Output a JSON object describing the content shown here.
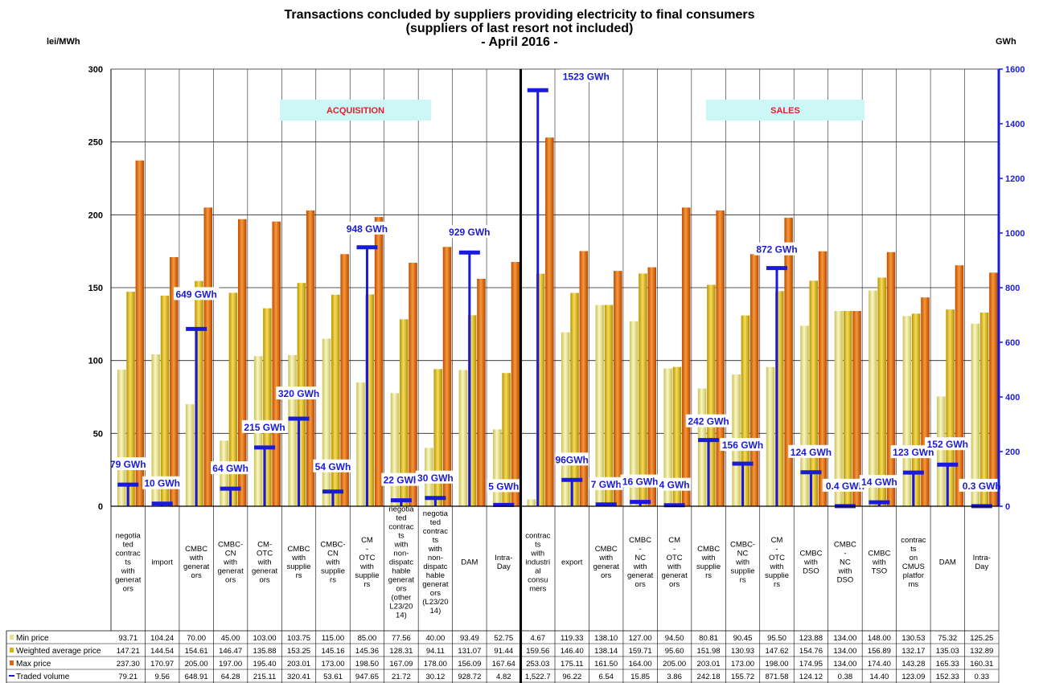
{
  "chart_data": {
    "type": "bar",
    "title": "Transactions concluded by suppliers providing electricity to final consumers",
    "subtitle": "(suppliers of last resort not included)",
    "period": "- April 2016 -",
    "y_left_label": "lei/MWh",
    "y_right_label": "GWh",
    "ylim_left": [
      0,
      300
    ],
    "ylim_right": [
      0,
      1600
    ],
    "y_left_ticks": [
      "0",
      "50",
      "100",
      "150",
      "200",
      "250",
      "300"
    ],
    "y_right_ticks": [
      "0",
      "200",
      "400",
      "600",
      "800",
      "1000",
      "1200",
      "1400",
      "1600"
    ],
    "sections": [
      {
        "label": "ACQUISITION"
      },
      {
        "label": "SALES"
      }
    ],
    "categories": [
      "negotia ted contrac ts with generat ors",
      "import",
      "CMBC with generat ors",
      "CMBC- CN with generat ors",
      "CM- OTC with generat ors",
      "CMBC with supplie rs",
      "CMBC- CN with supplie rs",
      "CM - OTC with supplie rs",
      "negotia ted contrac ts with non- dispatc hable generat ors (other L23/20 14)",
      "negotia ted contrac ts with non- dispatc hable generat ors (L23/20 14)",
      "DAM",
      "Intra- Day",
      "contrac ts with industri al consu mers",
      "export",
      "CMBC with generat ors",
      "CMBC - NC with generat ors",
      "CM - OTC with generat ors",
      "CMBC with supplie rs",
      "CMBC- NC with supplie rs",
      "CM - OTC with supplie rs",
      "CMBC with DSO",
      "CMBC - NC with DSO",
      "CMBC with TSO",
      "contrac ts on CMUS platfor ms",
      "DAM",
      "Intra- Day"
    ],
    "series": [
      {
        "name": "Min price",
        "color": "#e6e08c",
        "values": [
          93.71,
          104.24,
          70.0,
          45.0,
          103.0,
          103.75,
          115.0,
          85.0,
          77.56,
          40.0,
          93.49,
          52.75,
          4.67,
          119.33,
          138.1,
          127.0,
          94.5,
          80.81,
          90.45,
          95.5,
          123.88,
          134.0,
          148.0,
          130.53,
          75.32,
          125.25
        ],
        "labels": [
          "93.71",
          "104.24",
          "70.00",
          "45.00",
          "103.00",
          "103.75",
          "115.00",
          "85.00",
          "77.56",
          "40.00",
          "93.49",
          "52.75",
          "4.67",
          "119.33",
          "138.10",
          "127.00",
          "94.50",
          "80.81",
          "90.45",
          "95.50",
          "123.88",
          "134.00",
          "148.00",
          "130.53",
          "75.32",
          "125.25"
        ]
      },
      {
        "name": "Weighted average price",
        "color": "#d9b400",
        "values": [
          147.21,
          144.54,
          154.61,
          146.47,
          135.88,
          153.25,
          145.16,
          145.36,
          128.31,
          94.11,
          131.07,
          91.44,
          159.56,
          146.4,
          138.14,
          159.71,
          95.6,
          151.98,
          130.93,
          147.62,
          154.76,
          134.0,
          156.89,
          132.17,
          135.03,
          132.89
        ],
        "labels": [
          "147.21",
          "144.54",
          "154.61",
          "146.47",
          "135.88",
          "153.25",
          "145.16",
          "145.36",
          "128.31",
          "94.11",
          "131.07",
          "91.44",
          "159.56",
          "146.40",
          "138.14",
          "159.71",
          "95.60",
          "151.98",
          "130.93",
          "147.62",
          "154.76",
          "134.00",
          "156.89",
          "132.17",
          "135.03",
          "132.89"
        ]
      },
      {
        "name": "Max price",
        "color": "#e0640a",
        "values": [
          237.3,
          170.97,
          205.0,
          197.0,
          195.4,
          203.01,
          173.0,
          198.5,
          167.09,
          178.0,
          156.09,
          167.64,
          253.03,
          175.11,
          161.5,
          164.0,
          205.0,
          203.01,
          173.0,
          198.0,
          174.95,
          134.0,
          174.4,
          143.28,
          165.33,
          160.31
        ],
        "labels": [
          "237.30",
          "170.97",
          "205.00",
          "197.00",
          "195.40",
          "203.01",
          "173.00",
          "198.50",
          "167.09",
          "178.00",
          "156.09",
          "167.64",
          "253.03",
          "175.11",
          "161.50",
          "164.00",
          "205.00",
          "203.01",
          "173.00",
          "198.00",
          "174.95",
          "134.00",
          "174.40",
          "143.28",
          "165.33",
          "160.31"
        ]
      },
      {
        "name": "Traded volume",
        "color": "#1a1adb",
        "axis": "right",
        "values": [
          79.21,
          9.56,
          648.91,
          64.28,
          215.11,
          320.41,
          53.61,
          947.65,
          21.72,
          30.12,
          928.72,
          4.82,
          1522.7,
          96.22,
          6.54,
          15.85,
          3.86,
          242.18,
          155.72,
          871.58,
          124.12,
          0.38,
          14.4,
          123.09,
          152.33,
          0.33
        ],
        "labels": [
          "79.21",
          "9.56",
          "648.91",
          "64.28",
          "215.11",
          "320.41",
          "53.61",
          "947.65",
          "21.72",
          "30.12",
          "928.72",
          "4.82",
          "1,522.7",
          "96.22",
          "6.54",
          "15.85",
          "3.86",
          "242.18",
          "155.72",
          "871.58",
          "124.12",
          "0.38",
          "14.40",
          "123.09",
          "152.33",
          "0.33"
        ],
        "data_labels": [
          "79 GWh",
          "10 GWh",
          "649 GWh",
          "64 GWh",
          "215 GWh",
          "320 GWh",
          "54 GWh",
          "948 GWh",
          "22 GWh",
          "30 GWh",
          "929 GWh",
          "5 GWh",
          "1523 GWh",
          "96GWh",
          "7 GWh",
          "16 GWh",
          "4 GWh",
          "242 GWh",
          "156 GWh",
          "872 GWh",
          "124 GWh",
          "0.4 GWh",
          "14 GWh",
          "123 GWh",
          "152 GWh",
          "0.3 GWh"
        ]
      }
    ]
  }
}
